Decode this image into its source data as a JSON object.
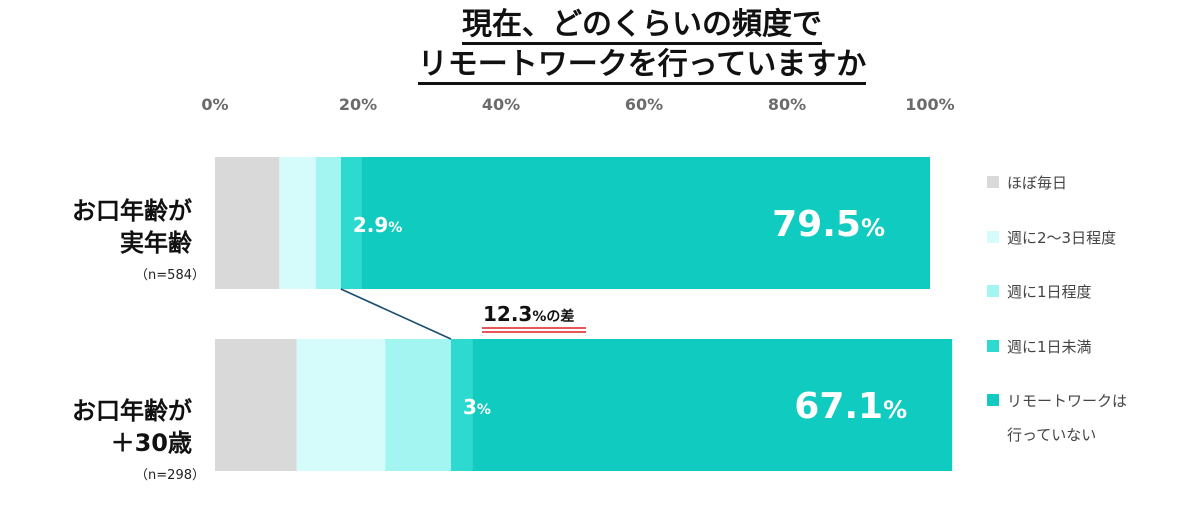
{
  "title": {
    "line1": "現在、どのくらいの頻度で",
    "line2": "リモートワークを行っていますか"
  },
  "colors": {
    "daily": "#d9d9d9",
    "w2to3": "#d6fbfb",
    "w1": "#a3f5f2",
    "under_w1": "#2ed9d0",
    "none": "#10cbbf",
    "connector": "#1b4f72",
    "diff_underline": "#e02020"
  },
  "chart_data": {
    "type": "bar",
    "orientation": "horizontal",
    "stacked": true,
    "xlim": [
      0,
      100
    ],
    "x_ticks": [
      "0%",
      "20%",
      "40%",
      "60%",
      "80%",
      "100%"
    ],
    "categories": [
      {
        "line1": "お口年齢が",
        "line2": "実年齢",
        "n_label": "（n=584）"
      },
      {
        "line1": "お口年齢が",
        "line2": "＋30歳",
        "n_label": "（n=298）"
      }
    ],
    "series": [
      {
        "name": "ほぼ毎日",
        "values": [
          9.0,
          11.4
        ]
      },
      {
        "name": "週に2〜3日程度",
        "values": [
          5.1,
          12.4
        ]
      },
      {
        "name": "週に1日程度",
        "values": [
          3.5,
          9.2
        ]
      },
      {
        "name": "週に1日未満",
        "values": [
          2.9,
          3.0
        ]
      },
      {
        "name_line1": "リモートワークは",
        "name_line2": "行っていない",
        "values": [
          79.5,
          67.1
        ]
      }
    ],
    "data_labels": [
      {
        "bar": 0,
        "series": 3,
        "number": "2.9",
        "unit": "%"
      },
      {
        "bar": 0,
        "series": 4,
        "number": "79.5",
        "unit": "%"
      },
      {
        "bar": 1,
        "series": 3,
        "number": "3",
        "unit": "%"
      },
      {
        "bar": 1,
        "series": 4,
        "number": "67.1",
        "unit": "%"
      }
    ],
    "annotation": {
      "number": "12.3",
      "suffix": "%の差"
    },
    "legend_position": "right"
  }
}
